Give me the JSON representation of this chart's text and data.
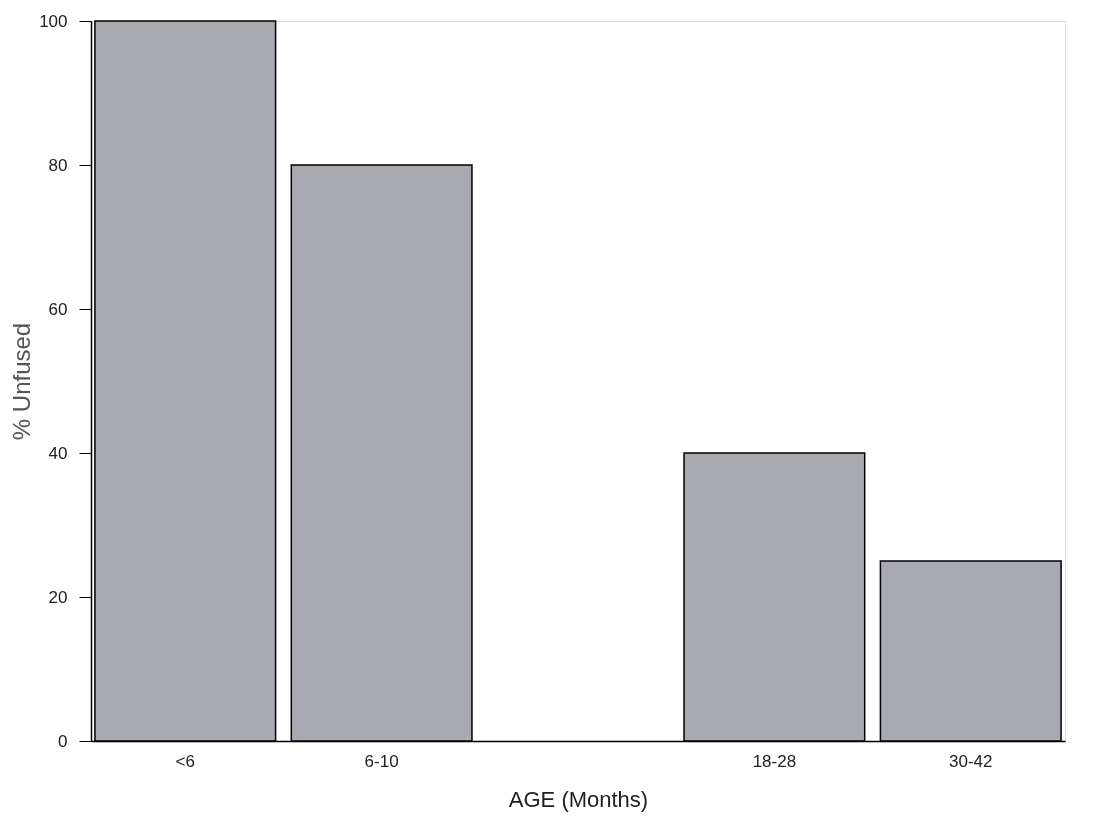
{
  "chart_data": {
    "type": "bar",
    "xlabel": "AGE (Months)",
    "ylabel": "% Unfused",
    "categories": [
      "<6",
      "6-10",
      null,
      "18-28",
      "30-42"
    ],
    "values": [
      100,
      80,
      null,
      40,
      25
    ],
    "color": "#a9a9b1",
    "ylim": [
      0,
      100
    ],
    "yticks": [
      0,
      20,
      40,
      60,
      80,
      100
    ],
    "grid": false
  }
}
